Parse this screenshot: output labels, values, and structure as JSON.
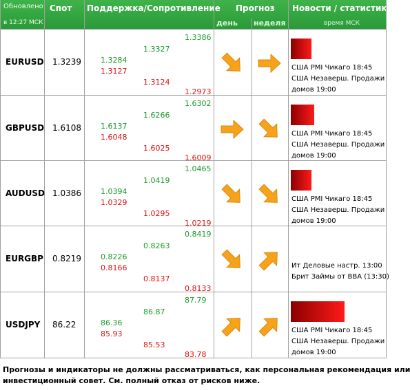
{
  "header": {
    "updated": [
      "Обновлено",
      "в 12:27 МСК"
    ],
    "spot": "Спот",
    "levels": "Поддержка/Сопротивление",
    "forecast": "Прогноз",
    "day": "день",
    "week": "неделя",
    "news": "Новости / статистика",
    "news_time": "время МСК"
  },
  "rows": [
    {
      "pair": "EURUSD",
      "spot": 1.3239,
      "levels": [
        [
          1.3284,
          1.3127
        ],
        [
          1.3327,
          1.3124
        ],
        [
          1.3386,
          1.2973
        ]
      ],
      "news": [
        "США PMI Чикаго 18:45",
        "США Незаверш. Продажи",
        "домов 19:00"
      ]
    },
    {
      "pair": "GBPUSD",
      "spot": 1.6108,
      "levels": [
        [
          1.6137,
          1.6048
        ],
        [
          1.6266,
          1.6025
        ],
        [
          1.6302,
          1.6009
        ]
      ],
      "news": [
        "США PMI Чикаго 18:45",
        "США Незаверш. Продажи",
        "домов 19:00"
      ]
    },
    {
      "pair": "AUDUSD",
      "spot": 1.0386,
      "levels": [
        [
          1.0394,
          1.0329
        ],
        [
          1.0419,
          1.0295
        ],
        [
          1.0465,
          1.0219
        ]
      ],
      "news": [
        "США PMI Чикаго 18:45",
        "США Незаверш. Продажи",
        "домов 19:00"
      ]
    },
    {
      "pair": "EURGBP",
      "spot": 0.8219,
      "levels": [
        [
          0.8226,
          0.8166
        ],
        [
          0.8263,
          0.8137
        ],
        [
          0.8419,
          0.8133
        ]
      ],
      "news": [
        "Ит Деловые настр. 13:00",
        "Брит Займы от BBA (13:30)"
      ]
    },
    {
      "pair": "USDJPY",
      "spot": 86.22,
      "levels": [
        [
          86.36,
          85.93
        ],
        [
          86.87,
          85.53
        ],
        [
          87.79,
          83.78
        ]
      ],
      "news": [
        "США PMI Чикаго 18:45",
        "США Незаверш. Продажи",
        "домов 19:00"
      ]
    }
  ],
  "footer": [
    "Прогнозы и индикаторы не должны рассматриваться, как персональная рекомендация или",
    "инвестиционный совет. См. полный отказ от рисков ниже."
  ]
}
